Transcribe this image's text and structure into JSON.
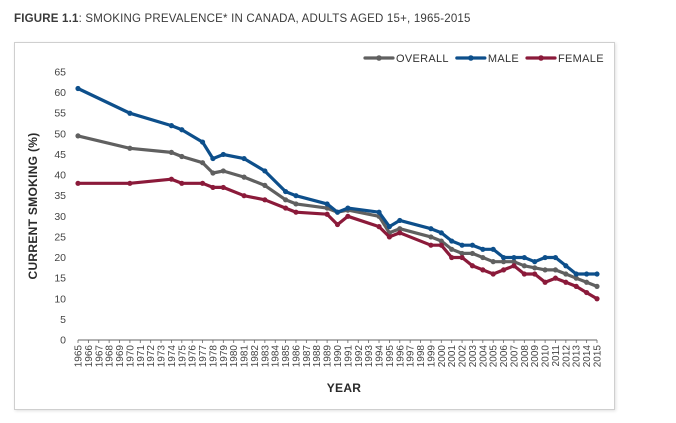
{
  "figure": {
    "lead": "FIGURE 1.1",
    "rest": ": SMOKING PREVALENCE* IN CANADA, ADULTS AGED 15+, 1965-2015"
  },
  "chart_data": {
    "type": "line",
    "title": "FIGURE 1.1: SMOKING PREVALENCE* IN CANADA, ADULTS AGED 15+, 1965-2015",
    "xlabel": "YEAR",
    "ylabel": "CURRENT SMOKING (%)",
    "ylim": [
      0,
      65
    ],
    "yticks": [
      0,
      5,
      10,
      15,
      20,
      25,
      30,
      35,
      40,
      45,
      50,
      55,
      60,
      65
    ],
    "xlim": [
      1965,
      2015
    ],
    "xticks": [
      1965,
      1966,
      1967,
      1968,
      1969,
      1970,
      1971,
      1972,
      1973,
      1974,
      1975,
      1976,
      1977,
      1978,
      1979,
      1980,
      1981,
      1982,
      1983,
      1984,
      1985,
      1986,
      1987,
      1988,
      1989,
      1990,
      1991,
      1992,
      1993,
      1994,
      1995,
      1996,
      1997,
      1998,
      1999,
      2000,
      2001,
      2002,
      2003,
      2004,
      2005,
      2006,
      2007,
      2008,
      2009,
      2010,
      2011,
      2012,
      2013,
      2014,
      2015
    ],
    "grid": false,
    "legend_position": "top-right",
    "series": [
      {
        "name": "OVERALL",
        "color": "#606060",
        "points": [
          [
            1965,
            49.5
          ],
          [
            1970,
            46.5
          ],
          [
            1974,
            45.5
          ],
          [
            1975,
            44.5
          ],
          [
            1977,
            43
          ],
          [
            1978,
            40.5
          ],
          [
            1979,
            41
          ],
          [
            1981,
            39.5
          ],
          [
            1983,
            37.5
          ],
          [
            1985,
            34
          ],
          [
            1986,
            33
          ],
          [
            1989,
            32
          ],
          [
            1990,
            31
          ],
          [
            1991,
            31.5
          ],
          [
            1994,
            30
          ],
          [
            1995,
            26
          ],
          [
            1996,
            27
          ],
          [
            1999,
            25
          ],
          [
            2000,
            24
          ],
          [
            2001,
            22
          ],
          [
            2002,
            21
          ],
          [
            2003,
            21
          ],
          [
            2004,
            20
          ],
          [
            2005,
            19
          ],
          [
            2006,
            19
          ],
          [
            2007,
            19
          ],
          [
            2008,
            18
          ],
          [
            2009,
            17.5
          ],
          [
            2010,
            17
          ],
          [
            2011,
            17
          ],
          [
            2012,
            16
          ],
          [
            2013,
            15
          ],
          [
            2014,
            14
          ],
          [
            2015,
            13
          ]
        ]
      },
      {
        "name": "MALE",
        "color": "#0d4f8b",
        "points": [
          [
            1965,
            61
          ],
          [
            1970,
            55
          ],
          [
            1974,
            52
          ],
          [
            1975,
            51
          ],
          [
            1977,
            48
          ],
          [
            1978,
            44
          ],
          [
            1979,
            45
          ],
          [
            1981,
            44
          ],
          [
            1983,
            41
          ],
          [
            1985,
            36
          ],
          [
            1986,
            35
          ],
          [
            1989,
            33
          ],
          [
            1990,
            31
          ],
          [
            1991,
            32
          ],
          [
            1994,
            31
          ],
          [
            1995,
            27.5
          ],
          [
            1996,
            29
          ],
          [
            1999,
            27
          ],
          [
            2000,
            26
          ],
          [
            2001,
            24
          ],
          [
            2002,
            23
          ],
          [
            2003,
            23
          ],
          [
            2004,
            22
          ],
          [
            2005,
            22
          ],
          [
            2006,
            20
          ],
          [
            2007,
            20
          ],
          [
            2008,
            20
          ],
          [
            2009,
            19
          ],
          [
            2010,
            20
          ],
          [
            2011,
            20
          ],
          [
            2012,
            18
          ],
          [
            2013,
            16
          ],
          [
            2014,
            16
          ],
          [
            2015,
            16
          ]
        ]
      },
      {
        "name": "FEMALE",
        "color": "#8b1a3a",
        "points": [
          [
            1965,
            38
          ],
          [
            1970,
            38
          ],
          [
            1974,
            39
          ],
          [
            1975,
            38
          ],
          [
            1977,
            38
          ],
          [
            1978,
            37
          ],
          [
            1979,
            37
          ],
          [
            1981,
            35
          ],
          [
            1983,
            34
          ],
          [
            1985,
            32
          ],
          [
            1986,
            31
          ],
          [
            1989,
            30.5
          ],
          [
            1990,
            28
          ],
          [
            1991,
            30
          ],
          [
            1994,
            27.5
          ],
          [
            1995,
            25
          ],
          [
            1996,
            26
          ],
          [
            1999,
            23
          ],
          [
            2000,
            23
          ],
          [
            2001,
            20
          ],
          [
            2002,
            20
          ],
          [
            2003,
            18
          ],
          [
            2004,
            17
          ],
          [
            2005,
            16
          ],
          [
            2006,
            17
          ],
          [
            2007,
            18
          ],
          [
            2008,
            16
          ],
          [
            2009,
            16
          ],
          [
            2010,
            14
          ],
          [
            2011,
            15
          ],
          [
            2012,
            14
          ],
          [
            2013,
            13
          ],
          [
            2014,
            11.5
          ],
          [
            2015,
            10
          ]
        ]
      }
    ]
  }
}
